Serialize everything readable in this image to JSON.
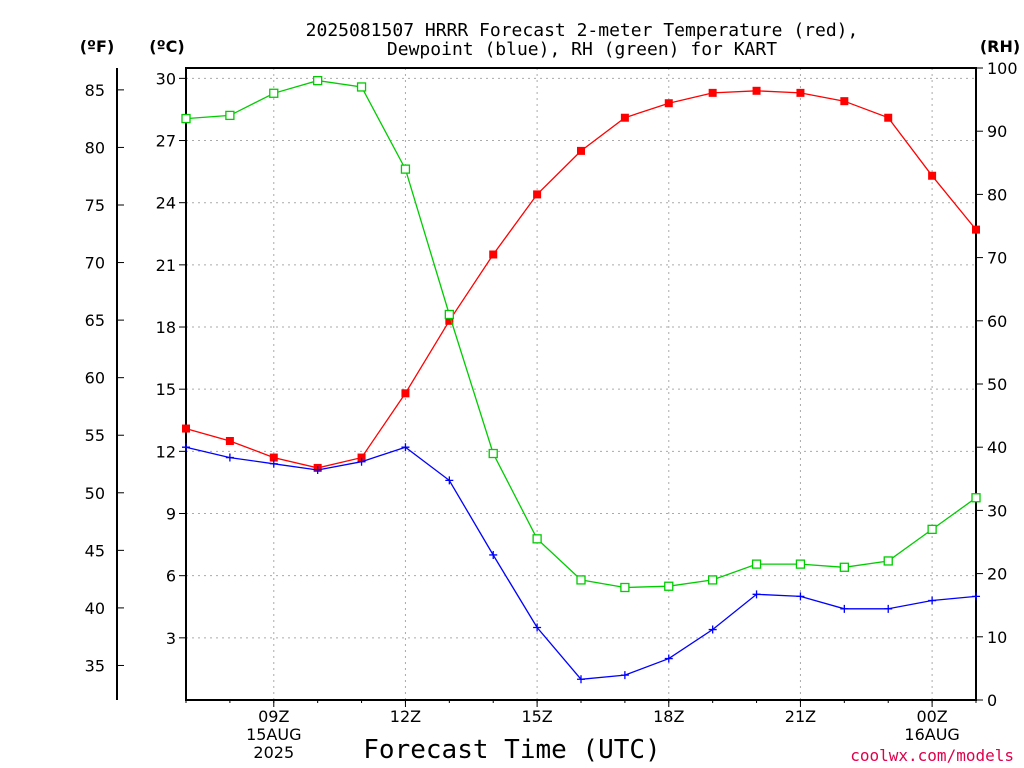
{
  "chart_data": {
    "type": "line",
    "title_lines": [
      "2025081507 HRRR Forecast 2-meter Temperature (red),",
      "Dewpoint (blue), RH (green) for KART"
    ],
    "xlabel": "Forecast Time (UTC)",
    "watermark": "coolwx.com/models",
    "left_outer_unit": "(ºF)",
    "left_inner_unit": "(ºC)",
    "right_unit": "(RH)",
    "x_hours": [
      7,
      8,
      9,
      10,
      11,
      12,
      13,
      14,
      15,
      16,
      17,
      18,
      19,
      20,
      21,
      22,
      23,
      24,
      25
    ],
    "xlim": [
      7,
      25
    ],
    "x_ticks": [
      {
        "hour": 9,
        "lines": [
          "09Z",
          "15AUG",
          "2025"
        ]
      },
      {
        "hour": 12,
        "lines": [
          "12Z"
        ]
      },
      {
        "hour": 15,
        "lines": [
          "15Z"
        ]
      },
      {
        "hour": 18,
        "lines": [
          "18Z"
        ]
      },
      {
        "hour": 21,
        "lines": [
          "21Z"
        ]
      },
      {
        "hour": 24,
        "lines": [
          "00Z",
          "16AUG"
        ]
      }
    ],
    "celsius_axis": {
      "ylim": [
        0,
        30.5
      ],
      "ticks": [
        "3",
        "6",
        "9",
        "12",
        "15",
        "18",
        "21",
        "24",
        "27",
        "30"
      ]
    },
    "fahrenheit_axis": {
      "ticks": [
        "35",
        "40",
        "45",
        "50",
        "55",
        "60",
        "65",
        "70",
        "75",
        "80",
        "85"
      ]
    },
    "rh_axis": {
      "ylim": [
        0,
        100
      ],
      "ticks": [
        "0",
        "10",
        "20",
        "30",
        "40",
        "50",
        "60",
        "70",
        "80",
        "90",
        "100"
      ]
    },
    "grid": true,
    "series": [
      {
        "key": "temperature",
        "axis": "celsius",
        "color": "#ff0000",
        "marker": "filled-square",
        "values": [
          13.1,
          12.5,
          11.7,
          11.2,
          11.7,
          14.8,
          18.3,
          21.5,
          24.4,
          26.5,
          28.1,
          28.8,
          29.3,
          29.4,
          29.3,
          28.9,
          28.1,
          25.3,
          22.7
        ]
      },
      {
        "key": "dewpoint",
        "axis": "celsius",
        "color": "#0000ff",
        "marker": "plus",
        "values": [
          12.2,
          11.7,
          11.4,
          11.1,
          11.5,
          12.2,
          10.6,
          7.0,
          3.5,
          1.0,
          1.2,
          2.0,
          3.4,
          5.1,
          5.0,
          4.4,
          4.4,
          4.8,
          5.0
        ]
      },
      {
        "key": "rh",
        "axis": "rh",
        "color": "#00cc00",
        "marker": "open-square",
        "values": [
          92,
          92.5,
          96,
          98,
          97,
          84,
          61,
          39,
          25.5,
          19,
          17.8,
          18,
          19,
          21.5,
          21.5,
          21,
          22,
          27,
          32
        ]
      }
    ]
  }
}
